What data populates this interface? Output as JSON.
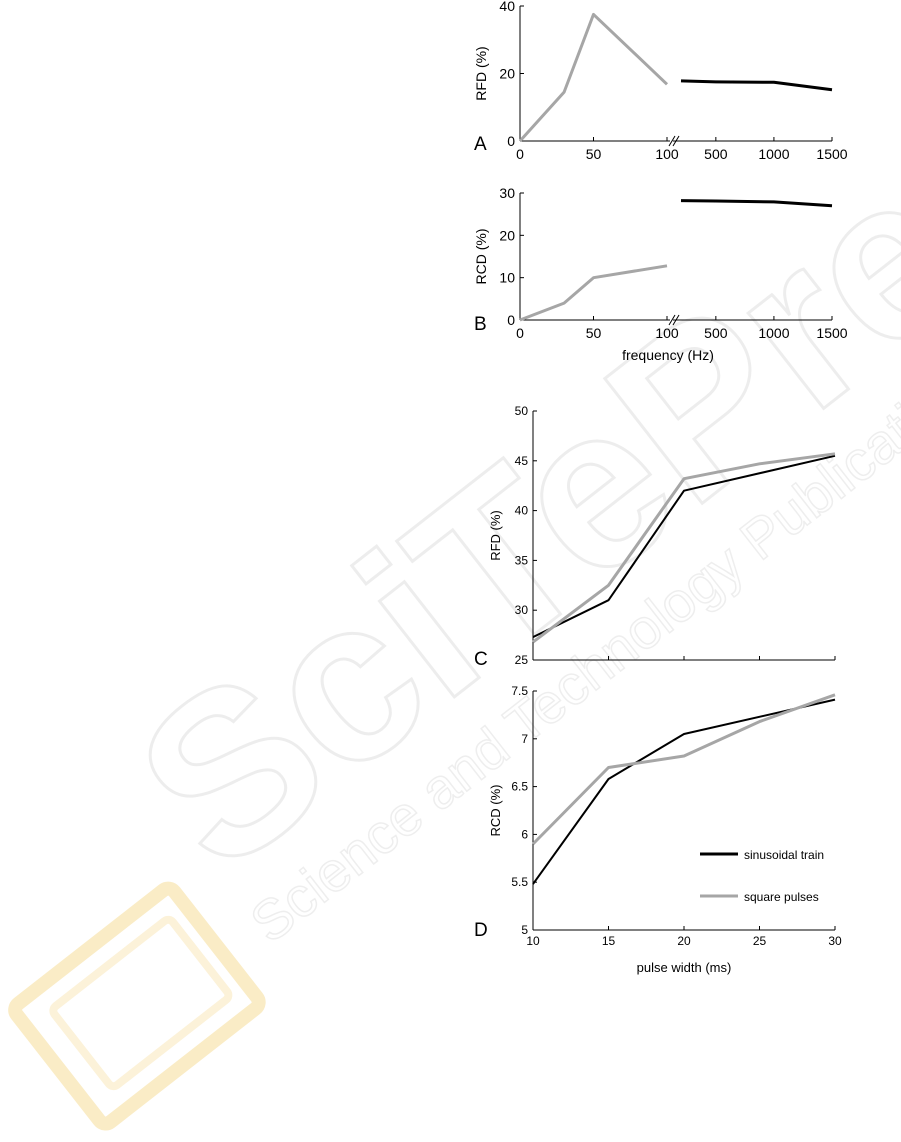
{
  "watermark": {
    "text": "SciTePress",
    "subtitle": "Science and Technology Publications",
    "colors": {
      "logo_yellow": "#f5d580",
      "text_gray": "#ececec"
    }
  },
  "colors": {
    "sinusoidal": "#000000",
    "square": "#a6a6a6"
  },
  "chart_data": [
    {
      "panel": "A",
      "type": "line",
      "title": "",
      "xlabel": "",
      "ylabel": "RFD (%)",
      "ylim": [
        0,
        40
      ],
      "y_ticks": [
        0,
        20,
        40
      ],
      "x_break": true,
      "x_ticks_left": [
        0,
        50,
        100
      ],
      "x_ticks_right": [
        500,
        1000,
        1500
      ],
      "xlim_left": [
        0,
        100
      ],
      "xlim_right": [
        200,
        1500
      ],
      "series": [
        {
          "segment": "left",
          "color": "#a6a6a6",
          "x": [
            0,
            30,
            50,
            100
          ],
          "y": [
            0,
            14.5,
            37.5,
            16.8
          ]
        },
        {
          "segment": "right",
          "color": "#000000",
          "x": [
            200,
            500,
            1000,
            1500
          ],
          "y": [
            17.8,
            17.5,
            17.4,
            15.2
          ]
        }
      ]
    },
    {
      "panel": "B",
      "type": "line",
      "title": "",
      "xlabel": "frequency (Hz)",
      "ylabel": "RCD (%)",
      "ylim": [
        0,
        30
      ],
      "y_ticks": [
        0,
        10,
        20,
        30
      ],
      "x_break": true,
      "x_ticks_left": [
        0,
        50,
        100
      ],
      "x_ticks_right": [
        500,
        1000,
        1500
      ],
      "xlim_left": [
        0,
        100
      ],
      "xlim_right": [
        200,
        1500
      ],
      "series": [
        {
          "segment": "left",
          "color": "#a6a6a6",
          "x": [
            0,
            30,
            50,
            100
          ],
          "y": [
            0,
            4,
            10,
            12.8
          ]
        },
        {
          "segment": "right",
          "color": "#000000",
          "x": [
            200,
            500,
            1000,
            1500
          ],
          "y": [
            28.2,
            28.1,
            27.9,
            27
          ]
        }
      ]
    },
    {
      "panel": "C",
      "type": "line",
      "title": "",
      "xlabel": "",
      "ylabel": "RFD (%)",
      "xlim": [
        10,
        30
      ],
      "ylim": [
        25,
        50
      ],
      "x_ticks": [
        10,
        15,
        20,
        25,
        30
      ],
      "x_tick_labels_shown": false,
      "y_ticks": [
        25,
        30,
        35,
        40,
        45,
        50
      ],
      "series": [
        {
          "name": "sinusoidal train",
          "color": "#000000",
          "x": [
            10,
            15,
            20,
            30
          ],
          "y": [
            27.3,
            31,
            42,
            45.5
          ]
        },
        {
          "name": "square pulses",
          "color": "#a6a6a6",
          "x": [
            10,
            15,
            20,
            25,
            30
          ],
          "y": [
            26.8,
            32.5,
            43.2,
            44.7,
            45.7
          ]
        }
      ]
    },
    {
      "panel": "D",
      "type": "line",
      "title": "",
      "xlabel": "pulse width (ms)",
      "ylabel": "RCD (%)",
      "xlim": [
        10,
        30
      ],
      "ylim": [
        5,
        7.5
      ],
      "x_ticks": [
        10,
        15,
        20,
        25,
        30
      ],
      "y_ticks": [
        5,
        5.5,
        6,
        6.5,
        7,
        7.5
      ],
      "legend": {
        "placement": "lower-right",
        "entries": [
          {
            "label": "sinusoidal train",
            "color": "#000000"
          },
          {
            "label": "square pulses",
            "color": "#a6a6a6"
          }
        ]
      },
      "series": [
        {
          "name": "sinusoidal train",
          "color": "#000000",
          "x": [
            10,
            15,
            20,
            30
          ],
          "y": [
            5.48,
            6.58,
            7.05,
            7.41
          ]
        },
        {
          "name": "square pulses",
          "color": "#a6a6a6",
          "x": [
            10,
            15,
            20,
            25,
            30
          ],
          "y": [
            5.9,
            6.7,
            6.82,
            7.18,
            7.46
          ]
        }
      ]
    }
  ]
}
